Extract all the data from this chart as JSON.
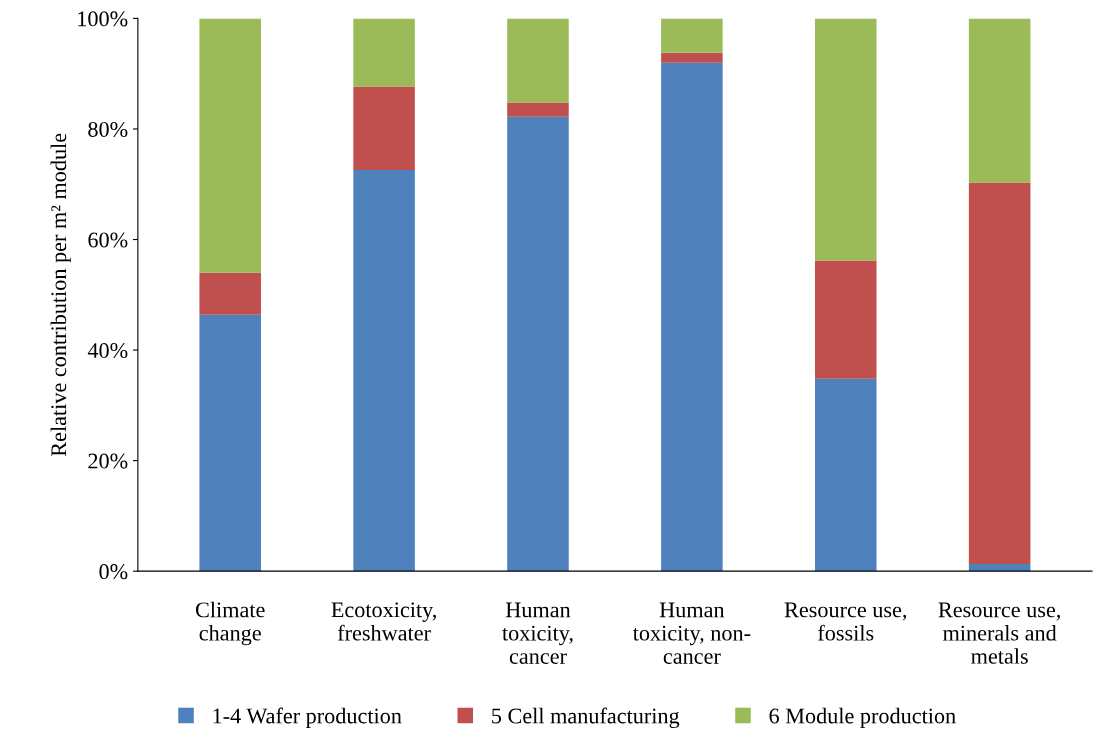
{
  "chart_data": {
    "type": "bar",
    "stacked": true,
    "ylabel": "Relative contribution per m² module",
    "categories": [
      "Climate\nchange",
      "Ecotoxicity,\nfreshwater",
      "Human\ntoxicity,\ncancer",
      "Human\ntoxicity, non-\ncancer",
      "Resource use,\nfossils",
      "Resource use,\nminerals and\nmetals"
    ],
    "series": [
      {
        "name": "1-4 Wafer production",
        "color": "#4f81bd",
        "values": [
          46.4,
          72.6,
          82.2,
          92.0,
          34.8,
          1.3
        ]
      },
      {
        "name": "5 Cell manufacturing",
        "color": "#c0504d",
        "values": [
          7.6,
          15.1,
          2.6,
          1.8,
          21.4,
          69.0
        ]
      },
      {
        "name": "6 Module production",
        "color": "#9bbb59",
        "values": [
          46.0,
          12.3,
          15.2,
          6.2,
          43.8,
          29.7
        ]
      }
    ],
    "ylim": [
      0,
      100
    ],
    "yticks": [
      {
        "value": 0,
        "label": "0%"
      },
      {
        "value": 20,
        "label": "20%"
      },
      {
        "value": 40,
        "label": "40%"
      },
      {
        "value": 60,
        "label": "60%"
      },
      {
        "value": 80,
        "label": "80%"
      },
      {
        "value": 100,
        "label": "100%"
      }
    ],
    "grid": false,
    "legend": "bottom"
  }
}
